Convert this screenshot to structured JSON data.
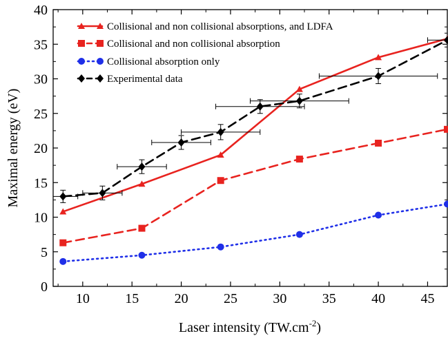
{
  "chart_data": {
    "type": "line",
    "xlabel": "Laser intensity (TW.cm",
    "xlabel_sup": "-2",
    "xlabel_end": ")",
    "ylabel": "Maximal energy (eV)",
    "xlim": [
      7,
      47
    ],
    "ylim": [
      0,
      40
    ],
    "x_ticks": [
      "10",
      "15",
      "20",
      "25",
      "30",
      "35",
      "40",
      "45"
    ],
    "y_ticks": [
      "0",
      "5",
      "10",
      "15",
      "20",
      "25",
      "30",
      "35",
      "40"
    ],
    "legend_position": "top-left",
    "series": [
      {
        "name": "Collisional and non collisional absorptions, and LDFA",
        "color": "#e8231f",
        "marker": "triangle",
        "line": "solid",
        "x": [
          8,
          16,
          24,
          32,
          40,
          47
        ],
        "y": [
          10.8,
          14.8,
          19.0,
          28.5,
          33.1,
          35.8
        ]
      },
      {
        "name": "Collisional and non collisional absorption",
        "color": "#e8231f",
        "marker": "square",
        "line": "dashed",
        "x": [
          8,
          16,
          24,
          32,
          40,
          47
        ],
        "y": [
          6.3,
          8.4,
          15.3,
          18.4,
          20.7,
          22.7
        ]
      },
      {
        "name": "Collisional absorption only",
        "color": "#1f2fe8",
        "marker": "circle",
        "line": "dotted",
        "x": [
          8,
          16,
          24,
          32,
          40,
          47
        ],
        "y": [
          3.6,
          4.5,
          5.7,
          7.5,
          10.3,
          11.9
        ]
      },
      {
        "name": "Experimental data",
        "color": "#000000",
        "marker": "diamond",
        "line": "dashed",
        "x": [
          8,
          12,
          16,
          20,
          24,
          28,
          32,
          40,
          47
        ],
        "y": [
          13.0,
          13.5,
          17.3,
          20.8,
          22.3,
          26.0,
          26.8,
          30.4,
          35.6
        ],
        "x_err": [
          1.5,
          2,
          2.5,
          3,
          4,
          4.5,
          5,
          6,
          2
        ],
        "y_err": [
          0.9,
          1.0,
          1.0,
          1.0,
          1.1,
          1.0,
          1.0,
          1.1,
          1.0
        ]
      }
    ]
  }
}
